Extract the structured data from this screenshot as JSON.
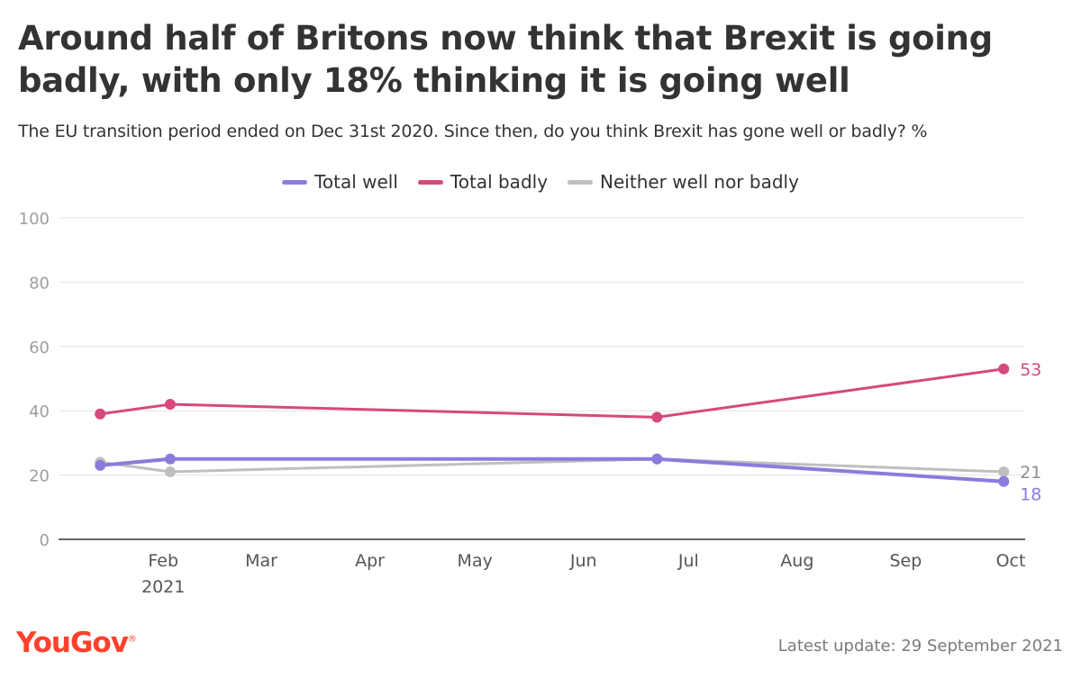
{
  "page": {
    "title": "Around half of Britons now think that Brexit is going badly, with only 18% thinking it is going well",
    "subtitle": "The EU transition period ended on Dec 31st 2020. Since then, do you think Brexit has gone well or badly? %",
    "brand": "YouGov",
    "footer": "Latest update: 29 September 2021"
  },
  "chart_data": {
    "type": "line",
    "title": "Around half of Britons now think that Brexit is going badly, with only 18% thinking it is going well",
    "subtitle": "The EU transition period ended on Dec 31st 2020. Since then, do you think Brexit has gone well or badly? %",
    "x": [
      "2021-01-14",
      "2021-02-03",
      "2021-06-22",
      "2021-09-29"
    ],
    "series": [
      {
        "name": "Total well",
        "color": "#8a7cdc",
        "values": [
          23,
          25,
          25,
          18
        ],
        "end_label": "18"
      },
      {
        "name": "Total badly",
        "color": "#d6497d",
        "values": [
          39,
          42,
          38,
          53
        ],
        "end_label": "53"
      },
      {
        "name": "Neither well nor badly",
        "color": "#bfbfbf",
        "values": [
          24,
          21,
          25,
          21
        ],
        "end_label": "21"
      }
    ],
    "xaxis": {
      "ticks": [
        {
          "date": "2021-02-01",
          "label": "Feb",
          "sublabel": "2021"
        },
        {
          "date": "2021-03-01",
          "label": "Mar"
        },
        {
          "date": "2021-04-01",
          "label": "Apr"
        },
        {
          "date": "2021-05-01",
          "label": "May"
        },
        {
          "date": "2021-06-01",
          "label": "Jun"
        },
        {
          "date": "2021-07-01",
          "label": "Jul"
        },
        {
          "date": "2021-08-01",
          "label": "Aug"
        },
        {
          "date": "2021-09-01",
          "label": "Sep"
        },
        {
          "date": "2021-10-01",
          "label": "Oct"
        }
      ]
    },
    "yaxis": {
      "ticks": [
        0,
        20,
        40,
        60,
        80,
        100
      ]
    },
    "ylim": [
      0,
      100
    ],
    "grid": true,
    "legend": "top-center"
  }
}
